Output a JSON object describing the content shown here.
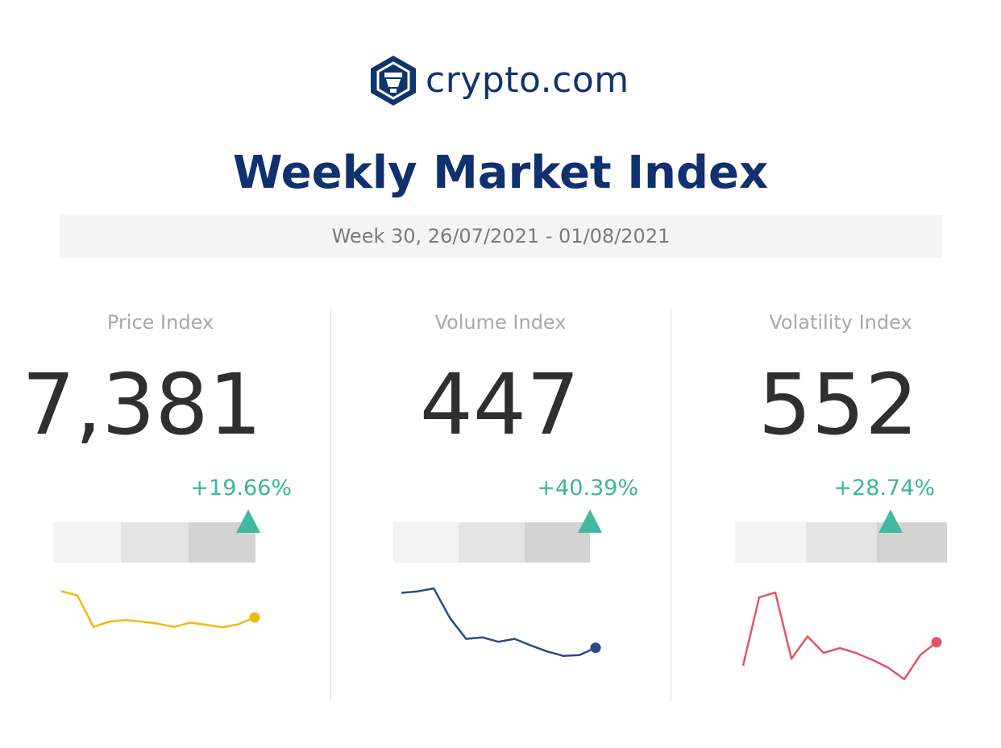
{
  "brand": {
    "name": "crypto.com",
    "color": "#10346b",
    "icon": "crypto-com-lion-hexagon-icon"
  },
  "title": "Weekly Market Index",
  "period": "Week 30, 26/07/2021 - 01/08/2021",
  "colors": {
    "up": "#3ab69b",
    "price_line": "#f2b90f",
    "volume_line": "#2c4a85",
    "volatility_line": "#e05566"
  },
  "chart_data": [
    {
      "type": "line",
      "title": "Price Index",
      "value": "7,381",
      "change": "+19.66%",
      "level_fraction": 0.9,
      "series": [
        {
          "values": [
            0.1,
            0.18,
            0.78,
            0.68,
            0.65,
            0.68,
            0.72,
            0.78,
            0.7,
            0.74,
            0.79,
            0.73,
            0.6
          ]
        }
      ]
    },
    {
      "type": "line",
      "title": "Volume Index",
      "value": "447",
      "change": "+40.39%",
      "level_fraction": 0.92,
      "series": [
        {
          "values": [
            0.06,
            0.04,
            0.0,
            0.4,
            0.68,
            0.66,
            0.72,
            0.68,
            0.77,
            0.85,
            0.91,
            0.9,
            0.8
          ]
        }
      ]
    },
    {
      "type": "line",
      "title": "Volatility Index",
      "value": "552",
      "change": "+28.74%",
      "level_fraction": 0.7,
      "series": [
        {
          "values": [
            0.8,
            0.1,
            0.05,
            0.73,
            0.5,
            0.67,
            0.62,
            0.67,
            0.74,
            0.82,
            0.94,
            0.69,
            0.56
          ]
        }
      ]
    }
  ]
}
